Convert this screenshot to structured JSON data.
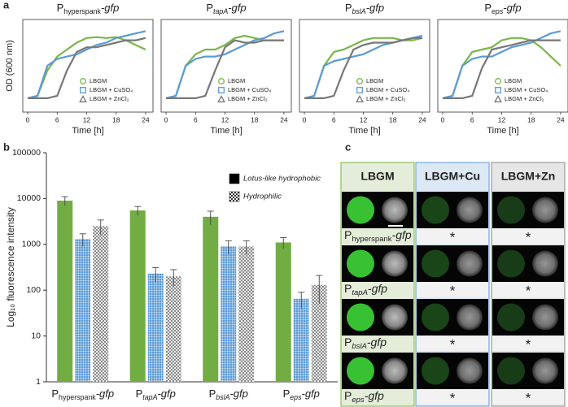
{
  "panel_labels": [
    "a",
    "b",
    "c"
  ],
  "chart_data": [
    {
      "type": "line",
      "title": {
        "prefix": "P",
        "sub": "hyperspank",
        "suffix": "-gfp"
      },
      "sub_italic": false,
      "ylabel": "OD (600 nm)",
      "xlabel": "Time [h]",
      "xlim": [
        -1,
        25.5
      ],
      "ylim": [
        0,
        2
      ],
      "xticks": [
        0,
        6,
        12,
        18,
        24
      ],
      "legend": "lower right",
      "x": [
        0,
        2,
        4,
        6,
        8,
        10,
        12,
        14,
        16,
        18,
        20,
        22,
        24
      ],
      "series": [
        {
          "name": "LBGM",
          "color": "#7ab648",
          "marker": "circle",
          "values": [
            0.3,
            0.35,
            0.9,
            1.2,
            1.35,
            1.5,
            1.6,
            1.62,
            1.6,
            1.62,
            1.55,
            1.45,
            1.35
          ]
        },
        {
          "name": "LBGM + CuSO₄",
          "color": "#5b9bd5",
          "marker": "square",
          "values": [
            0.3,
            0.35,
            1.0,
            1.15,
            1.2,
            1.25,
            1.35,
            1.45,
            1.5,
            1.6,
            1.65,
            1.7,
            1.75
          ]
        },
        {
          "name": "LBGM + ZnCl₂",
          "color": "#777777",
          "marker": "triangle",
          "values": [
            0.3,
            0.3,
            0.3,
            0.35,
            0.9,
            1.3,
            1.4,
            1.4,
            1.45,
            1.5,
            1.55,
            1.55,
            1.6
          ]
        }
      ]
    },
    {
      "type": "line",
      "title": {
        "prefix": "P",
        "sub": "tapA",
        "suffix": "-gfp"
      },
      "sub_italic": true,
      "xlabel": "Time [h]",
      "xlim": [
        -1,
        25.5
      ],
      "ylim": [
        0,
        2
      ],
      "xticks": [
        0,
        6,
        12,
        18,
        24
      ],
      "legend": "lower right",
      "x": [
        0,
        2,
        4,
        6,
        8,
        10,
        12,
        14,
        16,
        18,
        20,
        22,
        24
      ],
      "series": [
        {
          "name": "LBGM",
          "color": "#7ab648",
          "marker": "circle",
          "values": [
            0.3,
            0.35,
            1.0,
            1.25,
            1.35,
            1.35,
            1.45,
            1.6,
            1.65,
            1.6,
            1.55,
            1.55,
            1.55
          ]
        },
        {
          "name": "LBGM + CuSO₄",
          "color": "#5b9bd5",
          "marker": "square",
          "values": [
            0.3,
            0.35,
            1.0,
            1.15,
            1.2,
            1.2,
            1.25,
            1.35,
            1.45,
            1.55,
            1.6,
            1.7,
            1.75
          ]
        },
        {
          "name": "LBGM + ZnCl₂",
          "color": "#777777",
          "marker": "triangle",
          "values": [
            0.3,
            0.3,
            0.3,
            0.3,
            0.35,
            0.9,
            1.4,
            1.55,
            1.5,
            1.5,
            1.55,
            1.55,
            1.55
          ]
        }
      ]
    },
    {
      "type": "line",
      "title": {
        "prefix": "P",
        "sub": "bslA",
        "suffix": "-gfp"
      },
      "sub_italic": true,
      "xlabel": "Time [h]",
      "xlim": [
        -1,
        25.5
      ],
      "ylim": [
        0,
        2
      ],
      "xticks": [
        0,
        6,
        12,
        18,
        24
      ],
      "legend": "lower right",
      "x": [
        0,
        2,
        4,
        6,
        8,
        10,
        12,
        14,
        16,
        18,
        20,
        22,
        24
      ],
      "series": [
        {
          "name": "LBGM",
          "color": "#7ab648",
          "marker": "circle",
          "values": [
            0.3,
            0.35,
            1.0,
            1.3,
            1.35,
            1.45,
            1.55,
            1.6,
            1.6,
            1.6,
            1.55,
            1.55,
            1.6
          ]
        },
        {
          "name": "LBGM + CuSO₄",
          "color": "#5b9bd5",
          "marker": "square",
          "values": [
            0.3,
            0.35,
            1.0,
            1.1,
            1.15,
            1.2,
            1.25,
            1.35,
            1.45,
            1.5,
            1.55,
            1.6,
            1.65
          ]
        },
        {
          "name": "LBGM + ZnCl₂",
          "color": "#777777",
          "marker": "triangle",
          "values": [
            0.3,
            0.3,
            0.3,
            0.35,
            0.9,
            1.35,
            1.45,
            1.5,
            1.5,
            1.5,
            1.55,
            1.6,
            1.6
          ]
        }
      ]
    },
    {
      "type": "line",
      "title": {
        "prefix": "P",
        "sub": "eps",
        "suffix": "-gfp"
      },
      "sub_italic": true,
      "xlabel": "Time [h]",
      "xlim": [
        -1,
        25.5
      ],
      "ylim": [
        0,
        2
      ],
      "xticks": [
        0,
        6,
        12,
        18,
        24
      ],
      "legend": "lower right",
      "x": [
        0,
        2,
        4,
        6,
        8,
        10,
        12,
        14,
        16,
        18,
        20,
        22,
        24
      ],
      "series": [
        {
          "name": "LBGM",
          "color": "#7ab648",
          "marker": "circle",
          "values": [
            0.3,
            0.35,
            1.0,
            1.3,
            1.35,
            1.4,
            1.55,
            1.6,
            1.6,
            1.55,
            1.4,
            1.2,
            1.0
          ]
        },
        {
          "name": "LBGM + CuSO₄",
          "color": "#5b9bd5",
          "marker": "square",
          "values": [
            0.3,
            0.35,
            1.0,
            1.15,
            1.2,
            1.2,
            1.3,
            1.4,
            1.45,
            1.5,
            1.6,
            1.7,
            1.75
          ]
        },
        {
          "name": "LBGM + ZnCl₂",
          "color": "#777777",
          "marker": "triangle",
          "values": [
            0.3,
            0.3,
            0.3,
            0.35,
            0.95,
            1.35,
            1.4,
            1.45,
            1.5,
            1.55,
            1.55,
            1.55,
            1.55
          ]
        }
      ]
    },
    {
      "type": "bar",
      "log": true,
      "ylabel": "Log₁₀ fluorescence intensity",
      "ylim": [
        1,
        100000
      ],
      "yticks": [
        1,
        10,
        100,
        1000,
        10000,
        100000
      ],
      "categories": [
        {
          "prefix": "P",
          "sub": "hyperspank",
          "suffix": "-gfp",
          "sub_italic": false
        },
        {
          "prefix": "P",
          "sub": "tapA",
          "suffix": "-gfp",
          "sub_italic": true
        },
        {
          "prefix": "P",
          "sub": "bslA",
          "suffix": "-gfp",
          "sub_italic": true
        },
        {
          "prefix": "P",
          "sub": "eps",
          "suffix": "-gfp",
          "sub_italic": true
        }
      ],
      "series": [
        {
          "color": "#72ad44",
          "pattern": "solid",
          "values": [
            9000,
            5500,
            4000,
            1100
          ],
          "errors": [
            2000,
            1200,
            1300,
            300
          ]
        },
        {
          "color": "#5b9bd5",
          "pattern": "grid",
          "values": [
            1300,
            230,
            900,
            65
          ],
          "errors": [
            400,
            80,
            300,
            25
          ]
        },
        {
          "color": "#888888",
          "pattern": "checker",
          "values": [
            2500,
            200,
            900,
            130
          ],
          "errors": [
            900,
            80,
            300,
            80
          ]
        }
      ],
      "legend": [
        {
          "label": "Lotus-like hydrophobic",
          "pattern": "solid"
        },
        {
          "label": "Hydrophilic",
          "pattern": "checker"
        }
      ]
    }
  ],
  "image_grid": {
    "columns": [
      {
        "label": "LBGM",
        "color": "#e4edd9",
        "border": "#8bbf5e",
        "glow": "#3fd63a"
      },
      {
        "label": "LBGM+Cu",
        "color": "#dce8f4",
        "border": "#7aa9d6",
        "glow": "#2a7a2a"
      },
      {
        "label": "LBGM+Zn",
        "color": "#e6e6e6",
        "border": "#999999",
        "glow": "#276a27"
      }
    ],
    "rows": [
      {
        "label": {
          "prefix": "P",
          "sub": "hyperspank",
          "suffix": "-gfp"
        },
        "sub_italic": false,
        "marks": [
          "*",
          "*"
        ]
      },
      {
        "label": {
          "prefix": "P",
          "sub": "tapA",
          "suffix": "-gfp"
        },
        "sub_italic": true,
        "marks": [
          "*",
          "*"
        ]
      },
      {
        "label": {
          "prefix": "P",
          "sub": "bslA",
          "suffix": "-gfp"
        },
        "sub_italic": true,
        "marks": [
          "*",
          "*"
        ]
      },
      {
        "label": {
          "prefix": "P",
          "sub": "eps",
          "suffix": "-gfp"
        },
        "sub_italic": true,
        "marks": [
          "*",
          "*"
        ]
      }
    ]
  }
}
